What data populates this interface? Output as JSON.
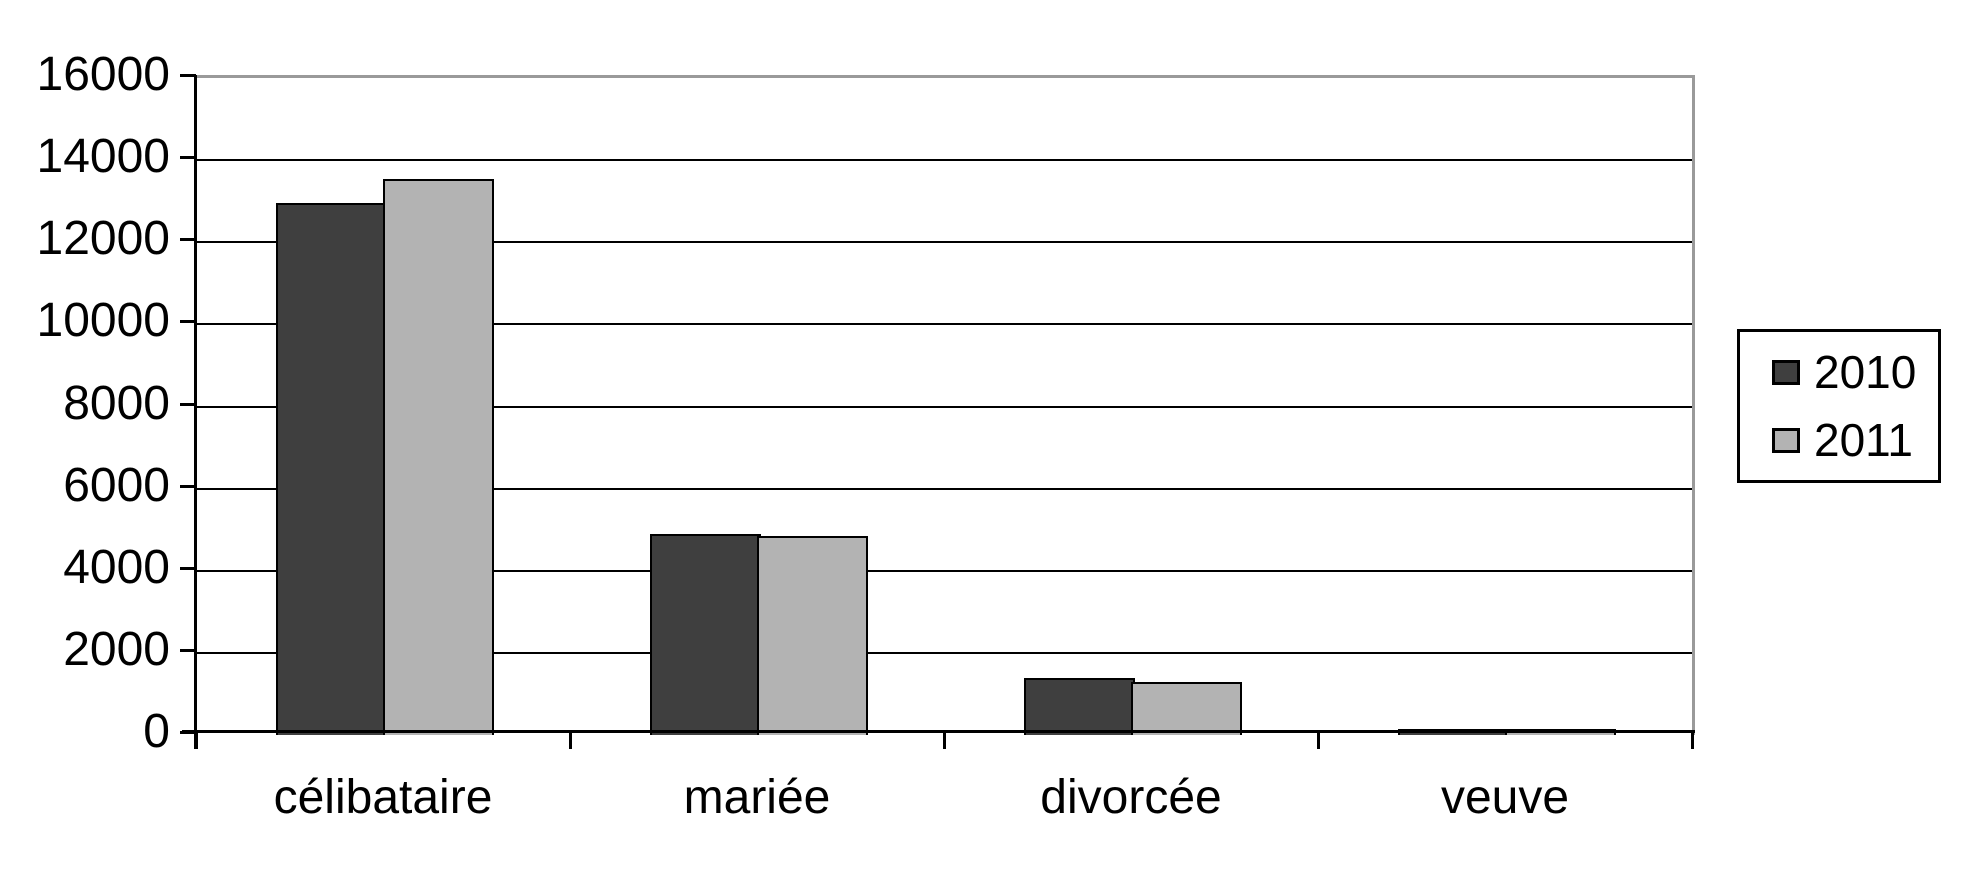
{
  "chart_data": {
    "type": "bar",
    "categories": [
      "célibataire",
      "mariée",
      "divorcée",
      "veuve"
    ],
    "series": [
      {
        "name": "2010",
        "color": "#3f3f3f",
        "values": [
          12900,
          4850,
          1350,
          100
        ]
      },
      {
        "name": "2011",
        "color": "#b3b3b3",
        "values": [
          13500,
          4800,
          1250,
          100
        ]
      }
    ],
    "ylim": [
      0,
      16000
    ],
    "ytick_step": 2000,
    "yticks_top_to_bottom": [
      "16000",
      "14000",
      "12000",
      "10000",
      "8000",
      "6000",
      "4000",
      "2000",
      "0"
    ],
    "grid": true,
    "gridline_color": "#000000",
    "plot_border_color": "#9a9a9a",
    "legend_position": "right",
    "title": "",
    "xlabel": "",
    "ylabel": ""
  },
  "legend": {
    "items": [
      {
        "label": "2010",
        "color": "#3f3f3f"
      },
      {
        "label": "2011",
        "color": "#b3b3b3"
      }
    ]
  }
}
